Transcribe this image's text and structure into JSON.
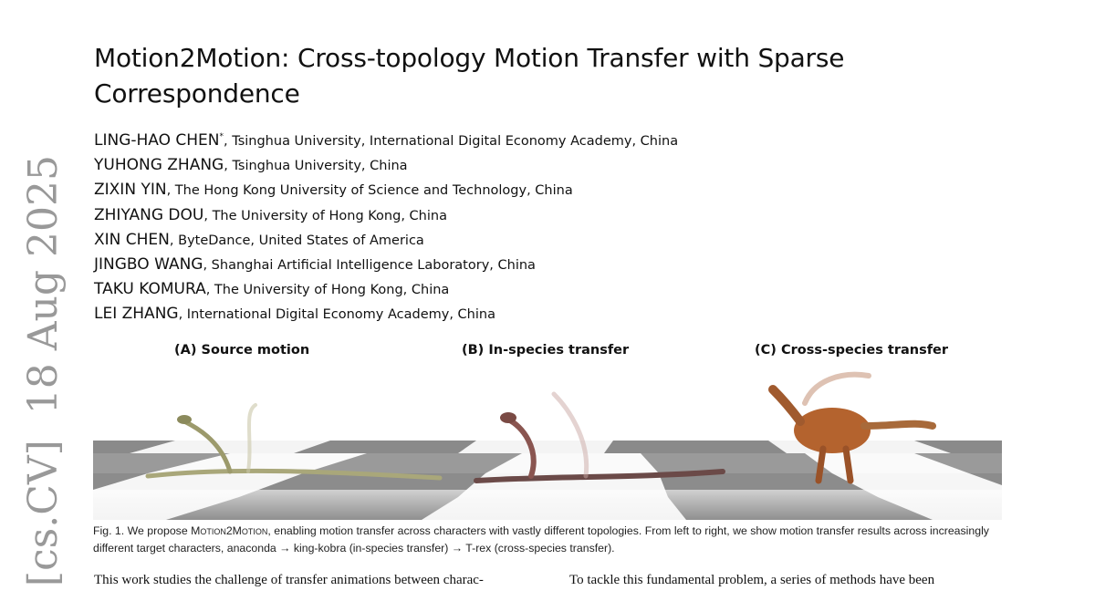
{
  "sidebar_stamp": "[cs.CV]  18 Aug 2025",
  "title": "Motion2Motion: Cross-topology Motion Transfer with Sparse Correspondence",
  "authors": [
    {
      "name": "LING-HAO CHEN",
      "mark": "*",
      "affiliation": ", Tsinghua University, International Digital Economy Academy, China"
    },
    {
      "name": "YUHONG ZHANG",
      "affiliation": ", Tsinghua University, China"
    },
    {
      "name": "ZIXIN YIN",
      "affiliation": ", The Hong Kong University of Science and Technology, China"
    },
    {
      "name": "ZHIYANG DOU",
      "affiliation": ", The University of Hong Kong, China"
    },
    {
      "name": "XIN CHEN",
      "affiliation": ", ByteDance, United States of America"
    },
    {
      "name": "JINGBO WANG",
      "affiliation": ", Shanghai Artificial Intelligence Laboratory, China"
    },
    {
      "name": "TAKU KOMURA",
      "affiliation": ", The University of Hong Kong, China"
    },
    {
      "name": "LEI ZHANG",
      "affiliation": ", International Digital Economy Academy, China"
    }
  ],
  "figure": {
    "labels": [
      "(A) Source motion",
      "(B) In-species transfer",
      "(C) Cross-species transfer"
    ],
    "caption": {
      "prefix": "Fig. 1.  We propose ",
      "method": "Motion2Motion",
      "rest": ", enabling motion transfer across characters with vastly different topologies. From left to right, we show motion transfer results across increasingly different target characters, anaconda → king-kobra (in-species transfer) → T-rex (cross-species transfer)."
    }
  },
  "body": {
    "left_col": "This work studies the challenge of transfer animations between charac-",
    "right_col": "To tackle this fundamental problem, a series of methods have been"
  }
}
